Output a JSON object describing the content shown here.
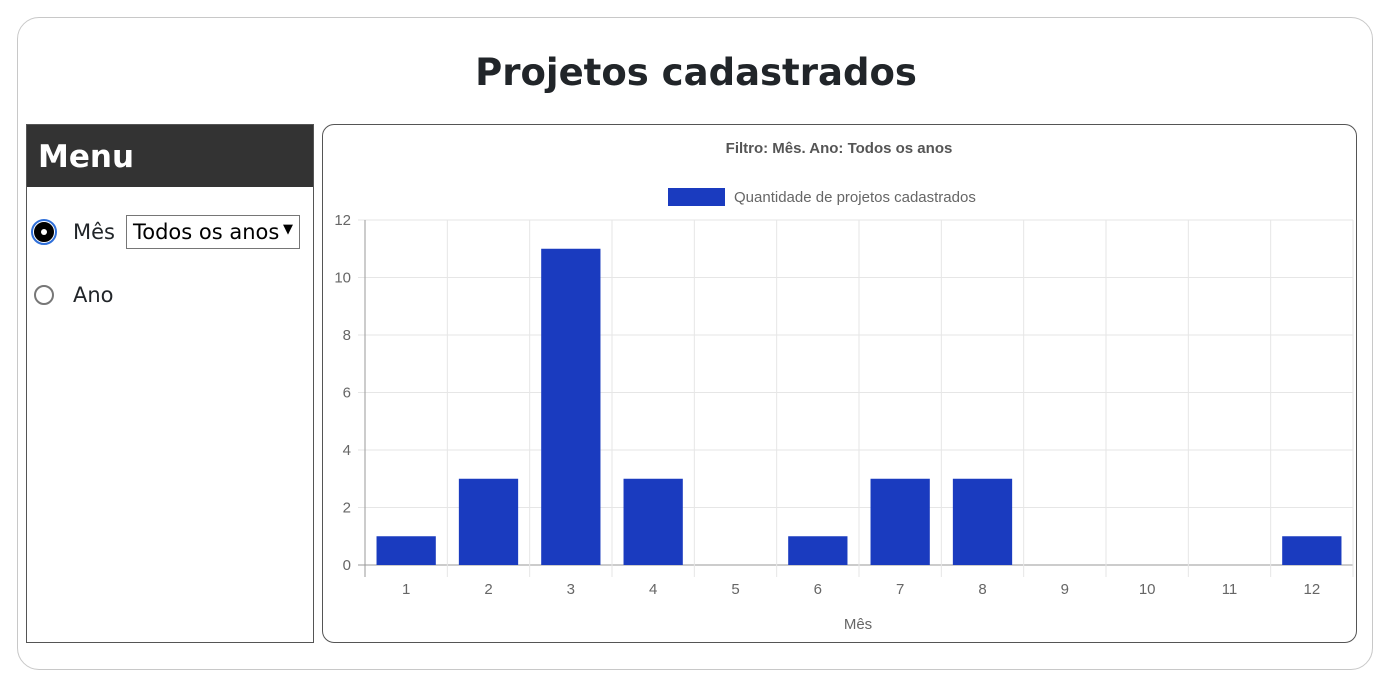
{
  "page": {
    "title": "Projetos cadastrados"
  },
  "menu": {
    "header": "Menu",
    "options": [
      {
        "label": "Mês",
        "checked": true
      },
      {
        "label": "Ano",
        "checked": false
      }
    ],
    "select": {
      "value": "Todos os anos"
    }
  },
  "colors": {
    "bar": "#1a3bbf",
    "menu_header_bg": "#333333",
    "grid": "#e6e6e6"
  },
  "chart_data": {
    "type": "bar",
    "title": "Filtro: Mês. Ano: Todos os anos",
    "legend": [
      "Quantidade de projetos cadastrados"
    ],
    "legend_position": "top",
    "xlabel": "Mês",
    "ylabel": "",
    "ylim": [
      0,
      12
    ],
    "yticks": [
      0,
      2,
      4,
      6,
      8,
      10,
      12
    ],
    "grid": true,
    "categories": [
      "1",
      "2",
      "3",
      "4",
      "5",
      "6",
      "7",
      "8",
      "9",
      "10",
      "11",
      "12"
    ],
    "series": [
      {
        "name": "Quantidade de projetos cadastrados",
        "values": [
          1,
          3,
          11,
          3,
          0,
          1,
          3,
          3,
          0,
          0,
          0,
          1
        ]
      }
    ]
  }
}
